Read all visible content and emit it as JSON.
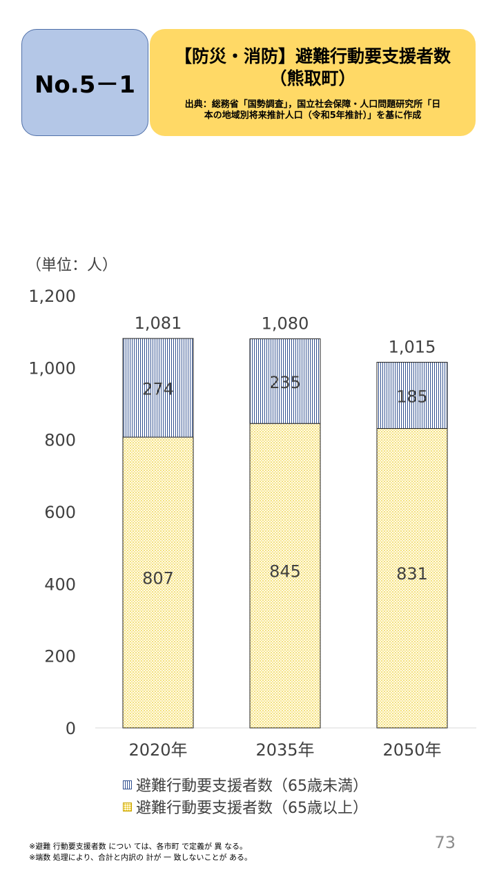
{
  "header": {
    "number": "No.5－1",
    "title_line1": "【防災・消防】避難行動要支援者数",
    "title_line2": "（熊取町）",
    "source_line1": "出典：総務省「国勢調査」，国立社会保障・人口問題研究所「日",
    "source_line2": "本の地域別将来推計人口（令和5年推計）」を基に作成"
  },
  "unit_label": "（単位：人）",
  "chart_data": {
    "type": "bar",
    "stacked": true,
    "categories": [
      "2020年",
      "2035年",
      "2050年"
    ],
    "series": [
      {
        "name": "避難行動要支援者数（65歳以上）",
        "values": [
          807,
          845,
          831
        ]
      },
      {
        "name": "避難行動要支援者数（65歳未満）",
        "values": [
          274,
          235,
          185
        ]
      }
    ],
    "totals": [
      1081,
      1080,
      1015
    ],
    "value_labels_under65": [
      "274",
      "235",
      "185"
    ],
    "value_labels_over65": [
      "807",
      "845",
      "831"
    ],
    "total_labels": [
      "1,081",
      "1,080",
      "1,015"
    ],
    "yticks": [
      "0",
      "200",
      "400",
      "600",
      "800",
      "1,000",
      "1,200"
    ],
    "ylim": [
      0,
      1200
    ],
    "grid": false,
    "legend_position": "bottom"
  },
  "legend": {
    "under65": "避難行動要支援者数（65歳未満）",
    "over65": "避難行動要支援者数（65歳以上）"
  },
  "notes": {
    "line1": "※避難 行動要支援者数 につい ては、各市町 で定義が 異 なる。",
    "line2": "※端数 処理により、合計と内訳の 計が 一 致しないことが ある。"
  },
  "page_number": "73"
}
